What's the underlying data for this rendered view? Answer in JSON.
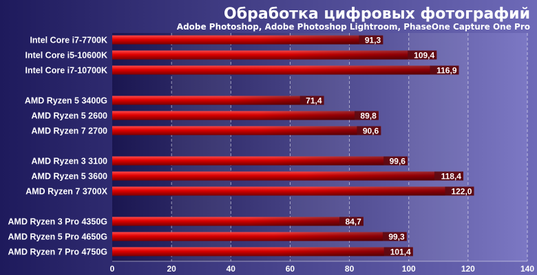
{
  "chart_data": {
    "type": "bar",
    "orientation": "horizontal",
    "title": "Обработка цифровых фотографий",
    "subtitle": "Adobe Photoshop, Adobe Photoshop Lightroom, PhaseOne Capture One Pro",
    "xlim": [
      0,
      140
    ],
    "xticks": [
      0,
      20,
      40,
      60,
      80,
      100,
      120,
      140
    ],
    "grid": true,
    "groups": [
      {
        "categories": [
          "Intel Core i7-7700K",
          "Intel Core i5-10600K",
          "Intel Core i7-10700K"
        ],
        "values": [
          91.3,
          109.4,
          116.9
        ],
        "labels": [
          "91,3",
          "109,4",
          "116,9"
        ]
      },
      {
        "categories": [
          "AMD Ryzen 5 3400G",
          "AMD Ryzen 5 2600",
          "AMD Ryzen 7 2700"
        ],
        "values": [
          71.4,
          89.8,
          90.6
        ],
        "labels": [
          "71,4",
          "89,8",
          "90,6"
        ]
      },
      {
        "categories": [
          "AMD Ryzen 3 3100",
          "AMD Ryzen 5 3600",
          "AMD Ryzen 7 3700X"
        ],
        "values": [
          99.6,
          118.4,
          122.0
        ],
        "labels": [
          "99,6",
          "118,4",
          "122,0"
        ]
      },
      {
        "categories": [
          "AMD Ryzen 3 Pro 4350G",
          "AMD Ryzen 5 Pro 4650G",
          "AMD Ryzen 7 Pro 4750G"
        ],
        "values": [
          84.7,
          99.3,
          101.4
        ],
        "labels": [
          "84,7",
          "99,3",
          "101,4"
        ]
      }
    ],
    "colors": {
      "bar_top": "#ff2a2a",
      "bar_bottom": "#7a0000",
      "bar_end": "#5c0a14",
      "background_dark": "#1e1a5c",
      "background_light": "#7a76c0",
      "grid": "#ffffff"
    }
  }
}
